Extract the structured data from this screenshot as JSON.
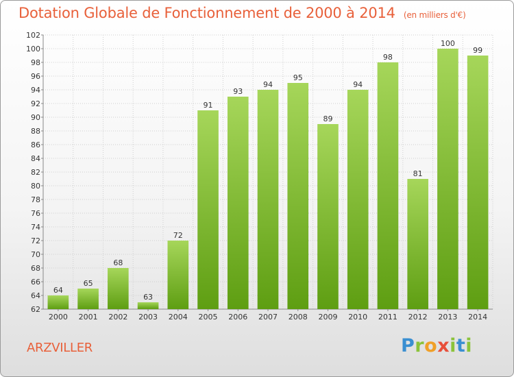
{
  "header": {
    "title": "Dotation Globale de Fonctionnement de 2000 à 2014",
    "subtitle": "(en milliers d'€)"
  },
  "footer": {
    "commune": "ARZVILLER",
    "logo": "Proxiti"
  },
  "colors": {
    "title": "#e8603a",
    "bar_top": "#a6d65a",
    "bar_bottom": "#5e9e12",
    "grid": "#cfcfcf"
  },
  "chart_data": {
    "type": "bar",
    "title": "Dotation Globale de Fonctionnement de 2000 à 2014",
    "subtitle": "(en milliers d'€)",
    "categories": [
      "2000",
      "2001",
      "2002",
      "2003",
      "2004",
      "2005",
      "2006",
      "2007",
      "2008",
      "2009",
      "2010",
      "2011",
      "2012",
      "2013",
      "2014"
    ],
    "values": [
      64,
      65,
      68,
      63,
      72,
      91,
      93,
      94,
      95,
      89,
      94,
      98,
      81,
      100,
      99
    ],
    "xlabel": "",
    "ylabel": "",
    "ylim": [
      62,
      102
    ],
    "yticks": [
      62,
      64,
      66,
      68,
      70,
      72,
      74,
      76,
      78,
      80,
      82,
      84,
      86,
      88,
      90,
      92,
      94,
      96,
      98,
      100,
      102
    ],
    "grid": true,
    "legend": "none"
  }
}
